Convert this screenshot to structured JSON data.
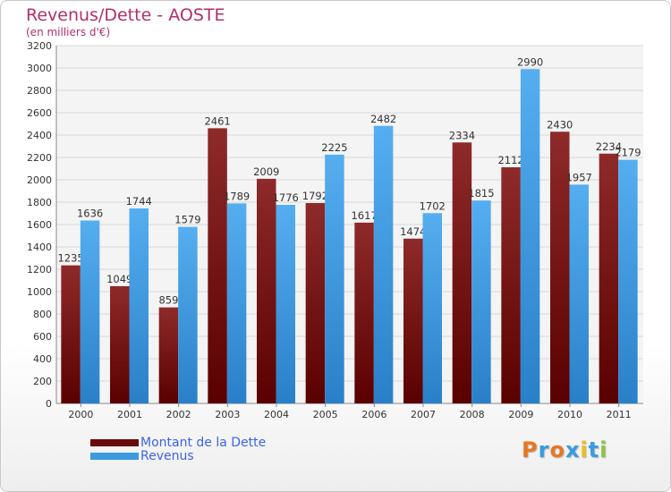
{
  "title": "Revenus/Dette - AOSTE",
  "subtitle": "(en milliers d'€)",
  "chart_data": {
    "type": "bar",
    "categories": [
      "2000",
      "2001",
      "2002",
      "2003",
      "2004",
      "2005",
      "2006",
      "2007",
      "2008",
      "2009",
      "2010",
      "2011"
    ],
    "series": [
      {
        "name": "Montant de la Dette",
        "color": "#8b1a1a",
        "values": [
          1235,
          1049,
          859,
          2461,
          2009,
          1792,
          1617,
          1474,
          2334,
          2112,
          2430,
          2234
        ]
      },
      {
        "name": "Revenus",
        "color": "#3a9be0",
        "values": [
          1636,
          1744,
          1579,
          1789,
          1776,
          2225,
          2482,
          1702,
          1815,
          2990,
          1957,
          2179
        ]
      }
    ],
    "ylim": [
      0,
      3200
    ],
    "yticks": [
      0,
      200,
      400,
      600,
      800,
      1000,
      1200,
      1400,
      1600,
      1800,
      2000,
      2200,
      2400,
      2600,
      2800,
      3000,
      3200
    ],
    "grid": true,
    "legend_position": "bottom-left",
    "data_labels": true
  },
  "logo": {
    "text": "Proxiti",
    "colors": [
      "#e87722",
      "#3a9be0",
      "#e87722",
      "#3a9be0",
      "#e8c020",
      "#3a9be0",
      "#8bc34a"
    ]
  }
}
